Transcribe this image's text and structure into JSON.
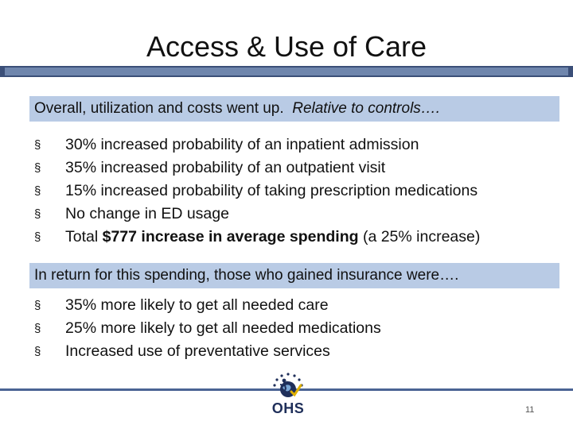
{
  "slide": {
    "title": "Access & Use of Care",
    "band1": {
      "text": "Overall, utilization and costs went up.  ",
      "italic": "Relative to controls…."
    },
    "list1": [
      {
        "text": "30% increased probability of an inpatient admission"
      },
      {
        "text": "35% increased probability of an outpatient visit"
      },
      {
        "text": "15% increased probability of taking prescription medications"
      },
      {
        "text": "No change in ED usage"
      },
      {
        "pre": "Total ",
        "bold": "$777 increase in average spending",
        "post": " (a 25% increase)"
      }
    ],
    "band2": {
      "text": "In return for this spending, those who gained insurance were…."
    },
    "list2": [
      {
        "text": "35% more likely to get all needed care"
      },
      {
        "text": "25% more likely to get all needed medications"
      },
      {
        "text": "Increased use of preventative services"
      }
    ],
    "bullet_glyph": "§",
    "logo_text": "OHS",
    "page_number": "11",
    "colors": {
      "band": "#b9cbe5",
      "title_bar": "#6f86ad",
      "footer_line": "#4a6394"
    }
  }
}
